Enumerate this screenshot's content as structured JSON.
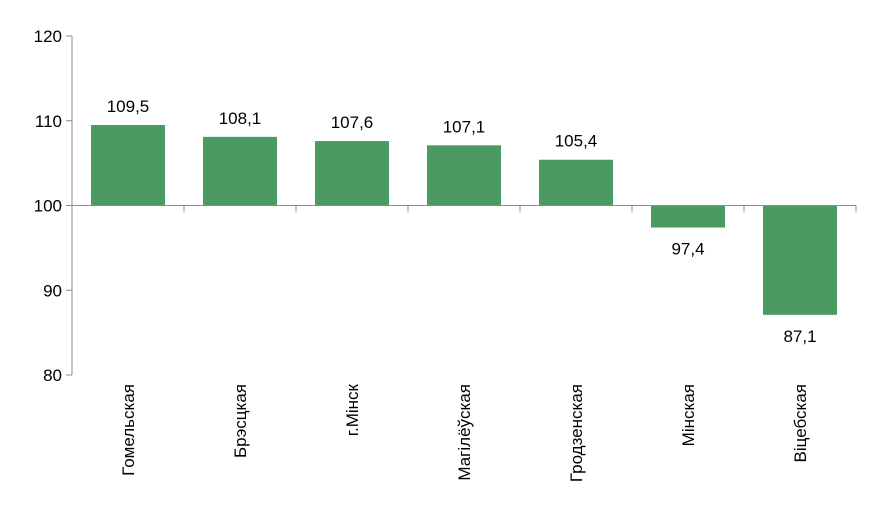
{
  "chart_data": {
    "type": "bar",
    "categories": [
      "Гомельская",
      "Брэсцкая",
      "г.Мінск",
      "Магілёўская",
      "Гродзенская",
      "Мінская",
      "Віцебская"
    ],
    "values": [
      109.5,
      108.1,
      107.6,
      107.1,
      105.4,
      97.4,
      87.1
    ],
    "data_labels": [
      "109,5",
      "108,1",
      "107,6",
      "107,1",
      "105,4",
      "97,4",
      "87,1"
    ],
    "baseline": 100,
    "ylim": [
      80,
      120
    ],
    "yticks": [
      "80",
      "90",
      "100",
      "110",
      "120"
    ],
    "grid": false,
    "title": "",
    "xlabel": "",
    "ylabel": "",
    "bar_color": "#4a9a62"
  }
}
